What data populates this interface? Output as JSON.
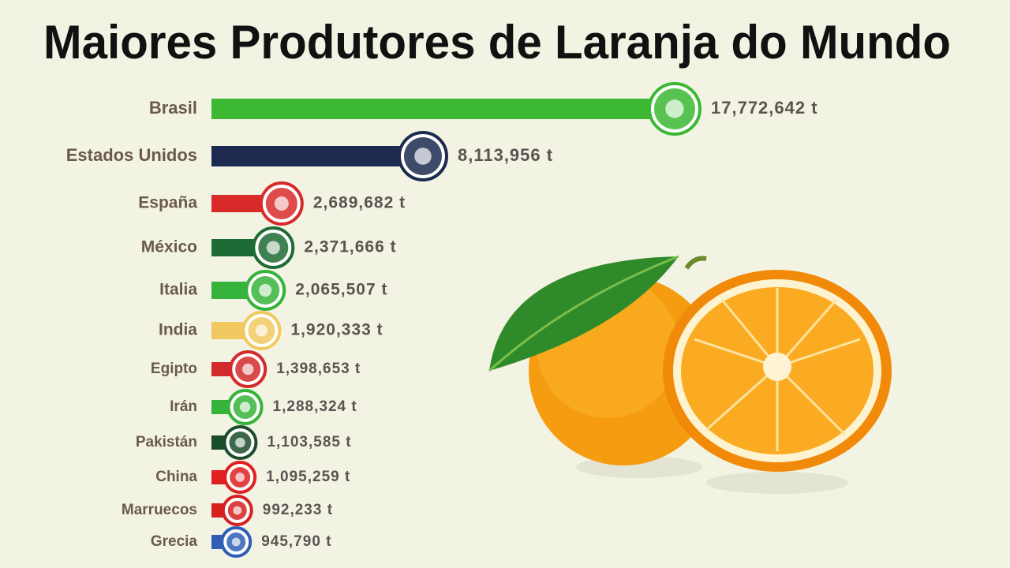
{
  "chart_data": {
    "type": "bar",
    "orientation": "horizontal",
    "title": "Maiores Produtores de Laranja do Mundo",
    "categories": [
      "Brasil",
      "Estados Unidos",
      "España",
      "México",
      "Italia",
      "India",
      "Egipto",
      "Irán",
      "Pakistán",
      "China",
      "Marruecos",
      "Grecia"
    ],
    "values": [
      17772642,
      8113956,
      2689682,
      2371666,
      2065507,
      1920333,
      1398653,
      1288324,
      1103585,
      1095259,
      992233,
      945790
    ],
    "value_labels": [
      "17,772,642 t",
      "8,113,956 t",
      "2,689,682 t",
      "2,371,666 t",
      "2,065,507 t",
      "1,920,333 t",
      "1,398,653 t",
      "1,288,324 t",
      "1,103,585 t",
      "1,095,259 t",
      "992,233 t",
      "945,790 t"
    ],
    "colors": [
      "#3cb832",
      "#1c2a4f",
      "#d92a2a",
      "#1f6b35",
      "#36b33a",
      "#f1c960",
      "#d22b2b",
      "#36b33a",
      "#1c4d2a",
      "#e02020",
      "#d62020",
      "#2f5fb5"
    ]
  }
}
